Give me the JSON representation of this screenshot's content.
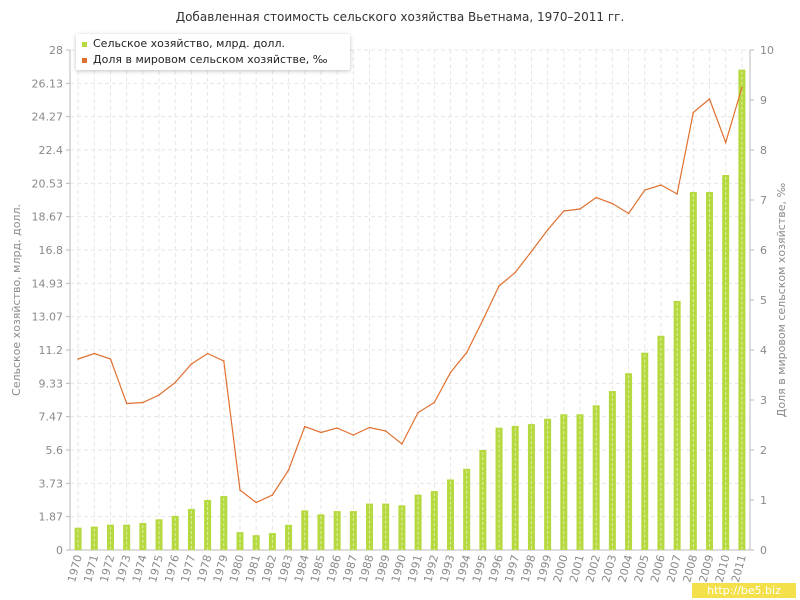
{
  "chart_data": {
    "type": "bar",
    "title": "Добавленная стоимость сельского хозяйства Вьетнама, 1970–2011 гг.",
    "categories": [
      "1970",
      "1971",
      "1972",
      "1973",
      "1974",
      "1975",
      "1976",
      "1977",
      "1978",
      "1979",
      "1980",
      "1981",
      "1982",
      "1983",
      "1984",
      "1985",
      "1986",
      "1987",
      "1988",
      "1989",
      "1990",
      "1991",
      "1992",
      "1993",
      "1994",
      "1995",
      "1996",
      "1997",
      "1998",
      "1999",
      "2000",
      "2001",
      "2002",
      "2003",
      "2004",
      "2005",
      "2006",
      "2007",
      "2008",
      "2009",
      "2010",
      "2011"
    ],
    "series": [
      {
        "name": "Сельское хозяйство, млрд. долл.",
        "type": "bar",
        "axis": "left",
        "color": "#b5d93f",
        "values": [
          1.25,
          1.31,
          1.42,
          1.42,
          1.51,
          1.72,
          1.91,
          2.3,
          2.8,
          3.02,
          1.0,
          0.83,
          0.95,
          1.41,
          2.22,
          2.0,
          2.18,
          2.18,
          2.6,
          2.6,
          2.5,
          3.1,
          3.3,
          3.95,
          4.55,
          5.6,
          6.85,
          6.95,
          7.05,
          7.35,
          7.6,
          7.6,
          8.1,
          8.9,
          9.9,
          11.05,
          12.0,
          13.95,
          20.05,
          20.05,
          21.0,
          26.9
        ]
      },
      {
        "name": "Доля в мировом сельском хозяйстве, ‰",
        "type": "line",
        "axis": "right",
        "color": "#e07030",
        "values": [
          3.82,
          3.93,
          3.82,
          2.93,
          2.95,
          3.1,
          3.35,
          3.72,
          3.93,
          3.78,
          1.2,
          0.95,
          1.1,
          1.6,
          2.47,
          2.35,
          2.44,
          2.3,
          2.45,
          2.38,
          2.12,
          2.75,
          2.95,
          3.55,
          3.95,
          4.6,
          5.28,
          5.55,
          5.97,
          6.4,
          6.78,
          6.82,
          7.05,
          6.93,
          6.73,
          7.2,
          7.3,
          7.12,
          8.75,
          9.02,
          8.15,
          9.25
        ]
      }
    ],
    "ylabel": "Сельское хозяйство, млрд. долл.",
    "ylabel_right": "Доля в мировом сельском хозяйстве, ‰",
    "ylim": [
      0,
      28
    ],
    "ylim_right": [
      0,
      10
    ],
    "yticks": [
      "0",
      "1.87",
      "3.73",
      "5.6",
      "7.47",
      "9.33",
      "11.2",
      "13.07",
      "14.93",
      "16.8",
      "18.67",
      "20.53",
      "22.4",
      "24.27",
      "26.13",
      "28"
    ],
    "yticks_right": [
      "0",
      "1",
      "2",
      "3",
      "4",
      "5",
      "6",
      "7",
      "8",
      "9",
      "10"
    ],
    "grid": true,
    "legend_position": "top-left"
  },
  "watermark": "http://be5.biz",
  "colors": {
    "grid": "#e6e6e6",
    "axis": "#bbbbbb",
    "tick_text": "#8a8a8a"
  }
}
